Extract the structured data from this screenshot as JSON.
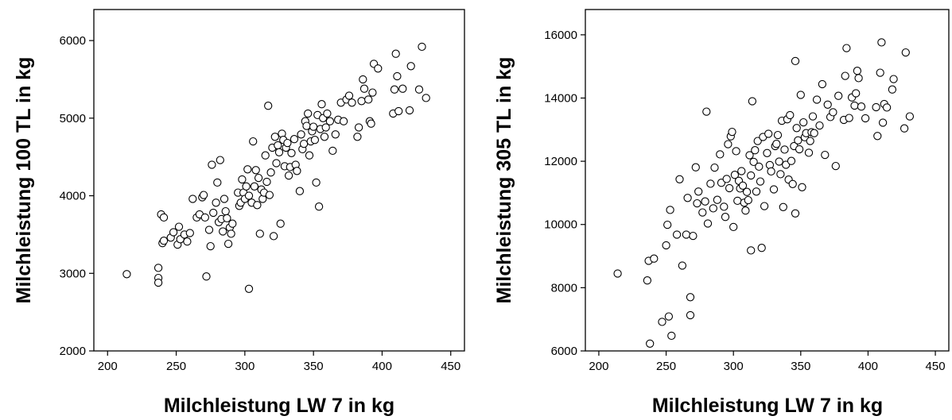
{
  "chart_data": [
    {
      "type": "scatter",
      "xlabel": "Milchleistung LW 7 in kg",
      "ylabel": "Milchleistung 100 TL in kg",
      "xlim": [
        190,
        460
      ],
      "ylim": [
        2000,
        6400
      ],
      "xticks": [
        200,
        250,
        300,
        350,
        400,
        450
      ],
      "yticks": [
        2000,
        3000,
        4000,
        5000,
        6000
      ],
      "grid": false,
      "points": [
        [
          214,
          2990
        ],
        [
          237,
          3070
        ],
        [
          237,
          2940
        ],
        [
          237,
          2880
        ],
        [
          239,
          3760
        ],
        [
          240,
          3390
        ],
        [
          241,
          3420
        ],
        [
          241,
          3720
        ],
        [
          246,
          3460
        ],
        [
          248,
          3530
        ],
        [
          251,
          3370
        ],
        [
          252,
          3600
        ],
        [
          253,
          3440
        ],
        [
          256,
          3500
        ],
        [
          258,
          3410
        ],
        [
          260,
          3520
        ],
        [
          262,
          3960
        ],
        [
          265,
          3720
        ],
        [
          267,
          3760
        ],
        [
          269,
          3980
        ],
        [
          270,
          4010
        ],
        [
          271,
          3720
        ],
        [
          272,
          2960
        ],
        [
          274,
          3560
        ],
        [
          275,
          3350
        ],
        [
          276,
          4400
        ],
        [
          277,
          3780
        ],
        [
          279,
          3910
        ],
        [
          280,
          4170
        ],
        [
          281,
          3660
        ],
        [
          282,
          4460
        ],
        [
          283,
          3700
        ],
        [
          284,
          3540
        ],
        [
          285,
          3960
        ],
        [
          286,
          3800
        ],
        [
          287,
          3710
        ],
        [
          288,
          3380
        ],
        [
          289,
          3590
        ],
        [
          290,
          3510
        ],
        [
          291,
          3640
        ],
        [
          295,
          4040
        ],
        [
          296,
          3870
        ],
        [
          297,
          3910
        ],
        [
          298,
          4210
        ],
        [
          299,
          4040
        ],
        [
          300,
          3960
        ],
        [
          301,
          4120
        ],
        [
          302,
          4340
        ],
        [
          303,
          4000
        ],
        [
          303,
          2800
        ],
        [
          305,
          3910
        ],
        [
          306,
          4700
        ],
        [
          307,
          4120
        ],
        [
          308,
          4330
        ],
        [
          309,
          3880
        ],
        [
          310,
          4230
        ],
        [
          311,
          3510
        ],
        [
          312,
          4080
        ],
        [
          313,
          3960
        ],
        [
          314,
          4040
        ],
        [
          315,
          4520
        ],
        [
          316,
          4180
        ],
        [
          317,
          5160
        ],
        [
          318,
          4010
        ],
        [
          319,
          4300
        ],
        [
          320,
          4620
        ],
        [
          321,
          3480
        ],
        [
          322,
          4760
        ],
        [
          323,
          4420
        ],
        [
          324,
          4650
        ],
        [
          325,
          4560
        ],
        [
          326,
          3640
        ],
        [
          327,
          4800
        ],
        [
          328,
          4720
        ],
        [
          329,
          4380
        ],
        [
          330,
          4620
        ],
        [
          331,
          4680
        ],
        [
          332,
          4260
        ],
        [
          333,
          4370
        ],
        [
          334,
          4550
        ],
        [
          336,
          4730
        ],
        [
          337,
          4400
        ],
        [
          338,
          4320
        ],
        [
          340,
          4060
        ],
        [
          341,
          4790
        ],
        [
          342,
          4600
        ],
        [
          343,
          4670
        ],
        [
          344,
          4960
        ],
        [
          345,
          4900
        ],
        [
          346,
          5060
        ],
        [
          347,
          4520
        ],
        [
          348,
          4700
        ],
        [
          349,
          4830
        ],
        [
          350,
          4890
        ],
        [
          351,
          4720
        ],
        [
          352,
          4170
        ],
        [
          353,
          5040
        ],
        [
          354,
          3860
        ],
        [
          355,
          4860
        ],
        [
          356,
          5180
        ],
        [
          357,
          5000
        ],
        [
          358,
          4760
        ],
        [
          359,
          4880
        ],
        [
          360,
          5060
        ],
        [
          362,
          4960
        ],
        [
          364,
          4580
        ],
        [
          366,
          4790
        ],
        [
          368,
          4980
        ],
        [
          370,
          5200
        ],
        [
          372,
          4960
        ],
        [
          374,
          5240
        ],
        [
          376,
          5290
        ],
        [
          378,
          5200
        ],
        [
          382,
          4760
        ],
        [
          383,
          4880
        ],
        [
          385,
          5220
        ],
        [
          386,
          5500
        ],
        [
          387,
          5380
        ],
        [
          390,
          5240
        ],
        [
          391,
          4960
        ],
        [
          392,
          4930
        ],
        [
          393,
          5330
        ],
        [
          394,
          5700
        ],
        [
          397,
          5640
        ],
        [
          408,
          5060
        ],
        [
          409,
          5370
        ],
        [
          410,
          5830
        ],
        [
          411,
          5540
        ],
        [
          412,
          5090
        ],
        [
          415,
          5380
        ],
        [
          420,
          5100
        ],
        [
          421,
          5670
        ],
        [
          427,
          5370
        ],
        [
          429,
          5920
        ],
        [
          432,
          5260
        ]
      ]
    },
    {
      "type": "scatter",
      "xlabel": "Milchleistung LW 7 in kg",
      "ylabel": "Milchleistung 305 TL in kg",
      "xlim": [
        190,
        460
      ],
      "ylim": [
        6000,
        16800
      ],
      "xticks": [
        200,
        250,
        300,
        350,
        400,
        450
      ],
      "yticks": [
        6000,
        8000,
        10000,
        12000,
        14000,
        16000
      ],
      "grid": false,
      "points": [
        [
          214,
          8450
        ],
        [
          236,
          8230
        ],
        [
          237,
          8850
        ],
        [
          238,
          6230
        ],
        [
          241,
          8920
        ],
        [
          247,
          6920
        ],
        [
          250,
          9340
        ],
        [
          251,
          9990
        ],
        [
          252,
          7090
        ],
        [
          253,
          10460
        ],
        [
          254,
          6480
        ],
        [
          258,
          9680
        ],
        [
          260,
          11430
        ],
        [
          262,
          8700
        ],
        [
          265,
          9680
        ],
        [
          266,
          10840
        ],
        [
          268,
          7700
        ],
        [
          268,
          7130
        ],
        [
          270,
          9640
        ],
        [
          272,
          11810
        ],
        [
          273,
          10670
        ],
        [
          274,
          11040
        ],
        [
          277,
          10380
        ],
        [
          279,
          10730
        ],
        [
          280,
          13570
        ],
        [
          281,
          10030
        ],
        [
          283,
          11290
        ],
        [
          285,
          10510
        ],
        [
          286,
          11800
        ],
        [
          288,
          10780
        ],
        [
          290,
          12220
        ],
        [
          291,
          11320
        ],
        [
          293,
          10560
        ],
        [
          294,
          10240
        ],
        [
          295,
          11440
        ],
        [
          296,
          12540
        ],
        [
          297,
          11150
        ],
        [
          298,
          12790
        ],
        [
          299,
          12930
        ],
        [
          300,
          9920
        ],
        [
          301,
          11570
        ],
        [
          302,
          12320
        ],
        [
          303,
          10750
        ],
        [
          304,
          11380
        ],
        [
          305,
          11140
        ],
        [
          306,
          11690
        ],
        [
          307,
          11230
        ],
        [
          308,
          10690
        ],
        [
          309,
          10440
        ],
        [
          310,
          11030
        ],
        [
          311,
          10770
        ],
        [
          312,
          12190
        ],
        [
          313,
          11550
        ],
        [
          313,
          9180
        ],
        [
          314,
          13900
        ],
        [
          315,
          11980
        ],
        [
          316,
          12350
        ],
        [
          317,
          11040
        ],
        [
          318,
          12640
        ],
        [
          319,
          11830
        ],
        [
          320,
          11360
        ],
        [
          321,
          9260
        ],
        [
          322,
          12770
        ],
        [
          323,
          10580
        ],
        [
          325,
          12260
        ],
        [
          326,
          12870
        ],
        [
          327,
          11880
        ],
        [
          328,
          11680
        ],
        [
          330,
          11110
        ],
        [
          331,
          12480
        ],
        [
          332,
          12550
        ],
        [
          333,
          12830
        ],
        [
          334,
          11990
        ],
        [
          335,
          11590
        ],
        [
          336,
          13280
        ],
        [
          337,
          10550
        ],
        [
          338,
          12370
        ],
        [
          339,
          11890
        ],
        [
          340,
          13330
        ],
        [
          341,
          11420
        ],
        [
          342,
          13460
        ],
        [
          343,
          12010
        ],
        [
          344,
          11280
        ],
        [
          345,
          12480
        ],
        [
          346,
          10350
        ],
        [
          346,
          15170
        ],
        [
          347,
          13050
        ],
        [
          348,
          12660
        ],
        [
          349,
          12380
        ],
        [
          350,
          14100
        ],
        [
          351,
          11180
        ],
        [
          352,
          13230
        ],
        [
          353,
          12760
        ],
        [
          354,
          12890
        ],
        [
          356,
          12270
        ],
        [
          357,
          12640
        ],
        [
          358,
          12920
        ],
        [
          359,
          13420
        ],
        [
          360,
          12890
        ],
        [
          362,
          13950
        ],
        [
          364,
          13130
        ],
        [
          366,
          14440
        ],
        [
          368,
          12200
        ],
        [
          370,
          13790
        ],
        [
          372,
          13400
        ],
        [
          374,
          13550
        ],
        [
          376,
          11850
        ],
        [
          378,
          14070
        ],
        [
          382,
          13310
        ],
        [
          383,
          14700
        ],
        [
          384,
          15580
        ],
        [
          386,
          13370
        ],
        [
          388,
          14020
        ],
        [
          390,
          13760
        ],
        [
          391,
          14150
        ],
        [
          392,
          14860
        ],
        [
          393,
          14630
        ],
        [
          395,
          13730
        ],
        [
          398,
          13360
        ],
        [
          406,
          13710
        ],
        [
          407,
          12800
        ],
        [
          409,
          14800
        ],
        [
          410,
          15760
        ],
        [
          411,
          13220
        ],
        [
          412,
          13810
        ],
        [
          414,
          13700
        ],
        [
          418,
          14270
        ],
        [
          419,
          14600
        ],
        [
          427,
          13040
        ],
        [
          428,
          15440
        ],
        [
          431,
          13420
        ]
      ]
    }
  ]
}
